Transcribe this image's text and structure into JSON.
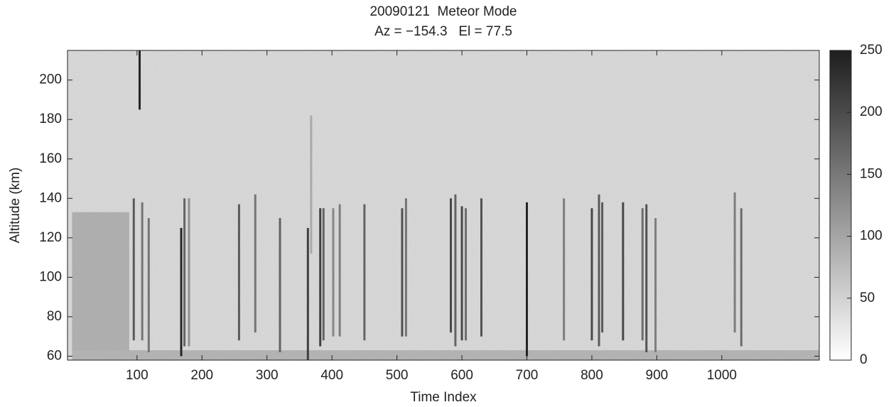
{
  "chart_data": {
    "type": "heatmap",
    "title": "20090121  Meteor Mode",
    "subtitle": "Az = −154.3   El = 77.5",
    "xlabel": "Time Index",
    "ylabel": "Altitude (km)",
    "xlim": [
      -7,
      1150
    ],
    "xticks": [
      100,
      200,
      300,
      400,
      500,
      600,
      700,
      800,
      900,
      1000
    ],
    "ylim": [
      58,
      215
    ],
    "yticks": [
      60,
      80,
      100,
      120,
      140,
      160,
      180,
      200
    ],
    "clim": [
      0,
      250
    ],
    "cticks": [
      0,
      50,
      100,
      150,
      200,
      250
    ],
    "colormap": [
      "#ffffff",
      "#1e1e1e"
    ],
    "background_value": 40,
    "blocks": [
      {
        "x": [
          0,
          88
        ],
        "y": [
          62,
          133
        ],
        "value": 85
      },
      {
        "x": [
          0,
          1150
        ],
        "y": [
          58,
          63
        ],
        "value": 80
      }
    ],
    "streaks": [
      {
        "x": 104,
        "y": [
          185,
          215
        ],
        "value": 240
      },
      {
        "x": 95,
        "y": [
          68,
          140
        ],
        "value": 180
      },
      {
        "x": 108,
        "y": [
          68,
          138
        ],
        "value": 150
      },
      {
        "x": 118,
        "y": [
          62,
          130
        ],
        "value": 150
      },
      {
        "x": 168,
        "y": [
          60,
          125
        ],
        "value": 240
      },
      {
        "x": 173,
        "y": [
          65,
          140
        ],
        "value": 170
      },
      {
        "x": 180,
        "y": [
          65,
          140
        ],
        "value": 120
      },
      {
        "x": 257,
        "y": [
          68,
          137
        ],
        "value": 180
      },
      {
        "x": 282,
        "y": [
          72,
          142
        ],
        "value": 150
      },
      {
        "x": 320,
        "y": [
          62,
          130
        ],
        "value": 170
      },
      {
        "x": 363,
        "y": [
          58,
          125
        ],
        "value": 210
      },
      {
        "x": 368,
        "y": [
          112,
          182
        ],
        "value": 90
      },
      {
        "x": 382,
        "y": [
          65,
          135
        ],
        "value": 210
      },
      {
        "x": 387,
        "y": [
          68,
          135
        ],
        "value": 170
      },
      {
        "x": 402,
        "y": [
          70,
          135
        ],
        "value": 130
      },
      {
        "x": 412,
        "y": [
          70,
          137
        ],
        "value": 140
      },
      {
        "x": 450,
        "y": [
          68,
          137
        ],
        "value": 170
      },
      {
        "x": 508,
        "y": [
          70,
          135
        ],
        "value": 190
      },
      {
        "x": 514,
        "y": [
          70,
          140
        ],
        "value": 150
      },
      {
        "x": 583,
        "y": [
          72,
          140
        ],
        "value": 200
      },
      {
        "x": 590,
        "y": [
          65,
          142
        ],
        "value": 170
      },
      {
        "x": 600,
        "y": [
          68,
          136
        ],
        "value": 200
      },
      {
        "x": 606,
        "y": [
          68,
          135
        ],
        "value": 160
      },
      {
        "x": 630,
        "y": [
          70,
          140
        ],
        "value": 190
      },
      {
        "x": 700,
        "y": [
          60,
          138
        ],
        "value": 240
      },
      {
        "x": 757,
        "y": [
          68,
          140
        ],
        "value": 140
      },
      {
        "x": 800,
        "y": [
          68,
          135
        ],
        "value": 200
      },
      {
        "x": 811,
        "y": [
          65,
          142
        ],
        "value": 180
      },
      {
        "x": 816,
        "y": [
          72,
          138
        ],
        "value": 180
      },
      {
        "x": 848,
        "y": [
          68,
          138
        ],
        "value": 200
      },
      {
        "x": 878,
        "y": [
          68,
          135
        ],
        "value": 160
      },
      {
        "x": 884,
        "y": [
          62,
          137
        ],
        "value": 190
      },
      {
        "x": 898,
        "y": [
          62,
          130
        ],
        "value": 140
      },
      {
        "x": 1020,
        "y": [
          72,
          143
        ],
        "value": 140
      },
      {
        "x": 1030,
        "y": [
          65,
          135
        ],
        "value": 160
      }
    ]
  }
}
